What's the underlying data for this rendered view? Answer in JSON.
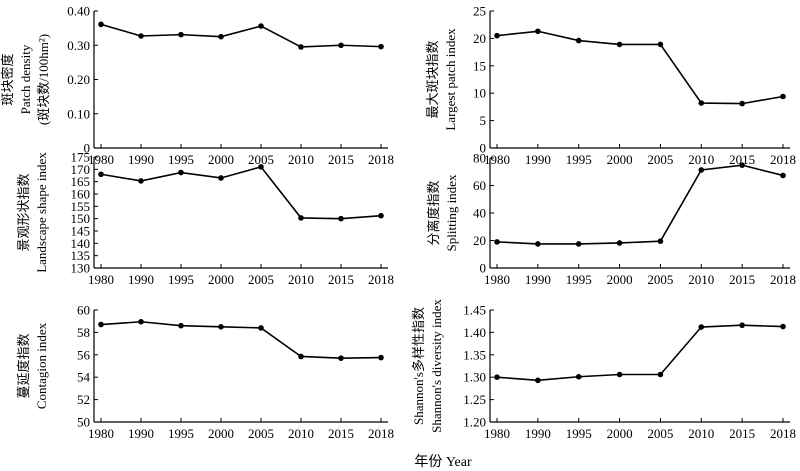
{
  "x_label": "年份 Year",
  "chart_data": [
    {
      "type": "line",
      "ylabel_lines": [
        "斑块密度",
        "Patch density",
        "(斑块数/100hm²)"
      ],
      "x": [
        1980,
        1990,
        1995,
        2000,
        2005,
        2010,
        2015,
        2018
      ],
      "xtick_labels": [
        "1980",
        "1990",
        "1995",
        "2000",
        "2005",
        "2010",
        "2015",
        "2018"
      ],
      "values": [
        0.361,
        0.327,
        0.331,
        0.325,
        0.356,
        0.295,
        0.3,
        0.296
      ],
      "ylim": [
        0,
        0.4
      ],
      "yticks": [
        0,
        0.1,
        0.2,
        0.3,
        0.4
      ],
      "ytick_labels": [
        "0",
        "0.10",
        "0.20",
        "0.30",
        "0.40"
      ]
    },
    {
      "type": "line",
      "ylabel_lines": [
        "最大斑块指数",
        "Largest patch index"
      ],
      "x": [
        1980,
        1990,
        1995,
        2000,
        2005,
        2010,
        2015,
        2018
      ],
      "xtick_labels": [
        "1980",
        "1990",
        "1995",
        "2000",
        "2005",
        "2010",
        "2015",
        "2018"
      ],
      "values": [
        20.5,
        21.3,
        19.6,
        18.9,
        18.9,
        8.2,
        8.1,
        9.4
      ],
      "ylim": [
        0,
        25
      ],
      "yticks": [
        0,
        5,
        10,
        15,
        20,
        25
      ],
      "ytick_labels": [
        "0",
        "5",
        "10",
        "15",
        "20",
        "25"
      ]
    },
    {
      "type": "line",
      "ylabel_lines": [
        "景观形状指数",
        "Landscape shape index"
      ],
      "x": [
        1980,
        1990,
        1995,
        2000,
        2005,
        2010,
        2015,
        2018
      ],
      "xtick_labels": [
        "1980",
        "1990",
        "1995",
        "2000",
        "2005",
        "2010",
        "2015",
        "2018"
      ],
      "values": [
        168.0,
        165.3,
        168.7,
        166.5,
        171.0,
        150.3,
        150.0,
        151.2
      ],
      "ylim": [
        130,
        175
      ],
      "yticks": [
        130,
        135,
        140,
        145,
        150,
        155,
        160,
        165,
        170,
        175
      ],
      "ytick_labels": [
        "130",
        "135",
        "140",
        "145",
        "150",
        "155",
        "160",
        "165",
        "170",
        "175"
      ]
    },
    {
      "type": "line",
      "ylabel_lines": [
        "分离度指数",
        "Splitting index"
      ],
      "x": [
        1980,
        1990,
        1995,
        2000,
        2005,
        2010,
        2015,
        2018
      ],
      "xtick_labels": [
        "1980",
        "1990",
        "1995",
        "2000",
        "2005",
        "2010",
        "2015",
        "2018"
      ],
      "values": [
        19.0,
        17.5,
        17.5,
        18.2,
        19.5,
        71.3,
        74.8,
        67.3
      ],
      "ylim": [
        0,
        80
      ],
      "yticks": [
        0,
        20,
        40,
        60,
        80
      ],
      "ytick_labels": [
        "0",
        "20",
        "40",
        "60",
        "80"
      ]
    },
    {
      "type": "line",
      "ylabel_lines": [
        "蔓延度指数",
        "Contagion index"
      ],
      "x": [
        1980,
        1990,
        1995,
        2000,
        2005,
        2010,
        2015,
        2018
      ],
      "xtick_labels": [
        "1980",
        "1990",
        "1995",
        "2000",
        "2005",
        "2010",
        "2015",
        "2018"
      ],
      "values": [
        58.7,
        58.95,
        58.6,
        58.5,
        58.4,
        55.85,
        55.7,
        55.75
      ],
      "ylim": [
        50,
        60
      ],
      "yticks": [
        50,
        52,
        54,
        56,
        58,
        60
      ],
      "ytick_labels": [
        "50",
        "52",
        "54",
        "56",
        "58",
        "60"
      ]
    },
    {
      "type": "line",
      "ylabel_lines": [
        "Shannon's多样性指数",
        "Shannon's diversity index"
      ],
      "x": [
        1980,
        1990,
        1995,
        2000,
        2005,
        2010,
        2015,
        2018
      ],
      "xtick_labels": [
        "1980",
        "1990",
        "1995",
        "2000",
        "2005",
        "2010",
        "2015",
        "2018"
      ],
      "values": [
        1.3,
        1.293,
        1.301,
        1.306,
        1.306,
        1.412,
        1.416,
        1.413
      ],
      "ylim": [
        1.2,
        1.45
      ],
      "yticks": [
        1.2,
        1.25,
        1.3,
        1.35,
        1.4,
        1.45
      ],
      "ytick_labels": [
        "1.20",
        "1.25",
        "1.30",
        "1.35",
        "1.40",
        "1.45"
      ]
    }
  ]
}
